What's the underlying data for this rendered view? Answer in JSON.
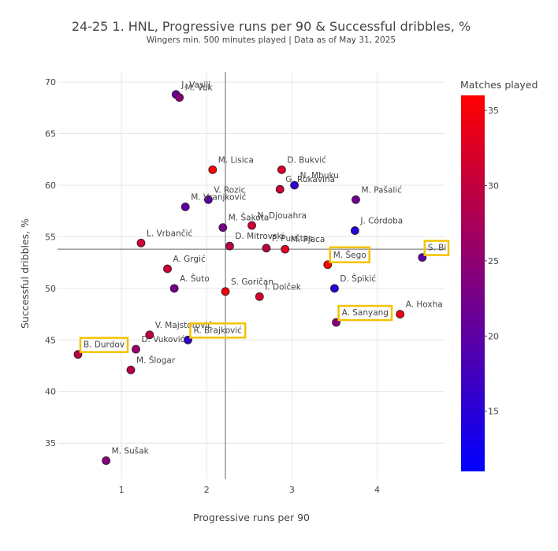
{
  "chart_data": {
    "type": "scatter",
    "title": "24-25 1. HNL, Progressive runs per 90 & Successful dribbles, %",
    "subtitle": "Wingers min. 500 minutes played | Data as of May 31, 2025",
    "xlabel": "Progressive runs per 90",
    "ylabel": "Successful dribbles, %",
    "xlim": [
      0.25,
      4.8
    ],
    "ylim": [
      31.5,
      71
    ],
    "xticks": [
      1,
      2,
      3,
      4
    ],
    "yticks": [
      35,
      40,
      45,
      50,
      55,
      60,
      65,
      70
    ],
    "reference_lines": {
      "x": 2.22,
      "y": 53.8
    },
    "colorbar": {
      "title": "Matches played",
      "range": [
        11,
        36
      ],
      "ticks": [
        15,
        20,
        25,
        30,
        35
      ],
      "colorscale": [
        "#0000ff",
        "#ff0000"
      ]
    },
    "grid": true,
    "points": [
      {
        "name": "J. Vasilj",
        "x": 1.64,
        "y": 68.8,
        "matches": 21,
        "highlight": false
      },
      {
        "name": "M. Vuk",
        "x": 1.68,
        "y": 68.5,
        "matches": 24,
        "highlight": false
      },
      {
        "name": "M. Lisica",
        "x": 2.07,
        "y": 61.5,
        "matches": 36,
        "highlight": false
      },
      {
        "name": "D. Bukvić",
        "x": 2.88,
        "y": 61.5,
        "matches": 32,
        "highlight": false
      },
      {
        "name": "N. Mbuku",
        "x": 3.03,
        "y": 60.0,
        "matches": 16,
        "highlight": false
      },
      {
        "name": "G. Rukavina",
        "x": 2.86,
        "y": 59.6,
        "matches": 31,
        "highlight": false
      },
      {
        "name": "V. Rozic",
        "x": 2.02,
        "y": 58.6,
        "matches": 20,
        "highlight": false
      },
      {
        "name": "M. Vranjković",
        "x": 1.75,
        "y": 57.9,
        "matches": 20,
        "highlight": false
      },
      {
        "name": "M. Pašalić",
        "x": 3.75,
        "y": 58.6,
        "matches": 22,
        "highlight": false
      },
      {
        "name": "N. Djouahra",
        "x": 2.53,
        "y": 56.1,
        "matches": 31,
        "highlight": false
      },
      {
        "name": "M. Šakota",
        "x": 2.19,
        "y": 55.9,
        "matches": 23,
        "highlight": false
      },
      {
        "name": "J. Córdoba",
        "x": 3.74,
        "y": 55.6,
        "matches": 15,
        "highlight": false
      },
      {
        "name": "L. Vrbančić",
        "x": 1.23,
        "y": 54.4,
        "matches": 31,
        "highlight": false
      },
      {
        "name": "D. Mitrovski",
        "x": 2.27,
        "y": 54.1,
        "matches": 29,
        "highlight": false
      },
      {
        "name": "P. Pukštas",
        "x": 2.7,
        "y": 53.9,
        "matches": 29,
        "highlight": false
      },
      {
        "name": "M. Pjaca",
        "x": 2.92,
        "y": 53.8,
        "matches": 33,
        "highlight": false
      },
      {
        "name": "S. Bi",
        "x": 4.53,
        "y": 53.0,
        "matches": 20,
        "highlight": true
      },
      {
        "name": "M. Šego",
        "x": 3.42,
        "y": 52.3,
        "matches": 36,
        "highlight": true
      },
      {
        "name": "A. Grgić",
        "x": 1.54,
        "y": 51.9,
        "matches": 31,
        "highlight": false
      },
      {
        "name": "A. Šuto",
        "x": 1.62,
        "y": 50.0,
        "matches": 22,
        "highlight": false
      },
      {
        "name": "D. Špikić",
        "x": 3.5,
        "y": 50.0,
        "matches": 15,
        "highlight": false
      },
      {
        "name": "S. Goričan",
        "x": 2.22,
        "y": 49.7,
        "matches": 35,
        "highlight": false
      },
      {
        "name": "I. Dolček",
        "x": 2.62,
        "y": 49.2,
        "matches": 32,
        "highlight": false
      },
      {
        "name": "A. Hoxha",
        "x": 4.27,
        "y": 47.5,
        "matches": 34,
        "highlight": false
      },
      {
        "name": "A. Sanyang",
        "x": 3.52,
        "y": 46.7,
        "matches": 24,
        "highlight": true
      },
      {
        "name": "V. Majstorović",
        "x": 1.33,
        "y": 45.5,
        "matches": 30,
        "highlight": false
      },
      {
        "name": "R. Brajković",
        "x": 1.78,
        "y": 45.0,
        "matches": 16,
        "highlight": true
      },
      {
        "name": "D. Vuković",
        "x": 1.17,
        "y": 44.1,
        "matches": 26,
        "highlight": false
      },
      {
        "name": "B. Durdov",
        "x": 0.49,
        "y": 43.6,
        "matches": 29,
        "highlight": true
      },
      {
        "name": "M. Šlogar",
        "x": 1.11,
        "y": 42.1,
        "matches": 29,
        "highlight": false
      },
      {
        "name": "M. Sušak",
        "x": 0.82,
        "y": 33.3,
        "matches": 24,
        "highlight": false
      }
    ]
  }
}
